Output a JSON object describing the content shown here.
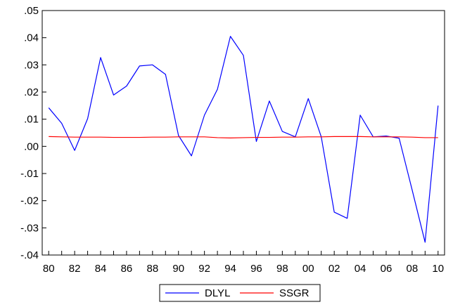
{
  "chart_data": {
    "type": "line",
    "title": "",
    "xlabel": "",
    "ylabel": "",
    "x": [
      1980,
      1981,
      1982,
      1983,
      1984,
      1985,
      1986,
      1987,
      1988,
      1989,
      1990,
      1991,
      1992,
      1993,
      1994,
      1995,
      1996,
      1997,
      1998,
      1999,
      2000,
      2001,
      2002,
      2003,
      2004,
      2005,
      2006,
      2007,
      2008,
      2009,
      2010
    ],
    "x_tick_values": [
      1980,
      1982,
      1984,
      1986,
      1988,
      1990,
      1992,
      1994,
      1996,
      1998,
      2000,
      2002,
      2004,
      2006,
      2008,
      2010
    ],
    "x_tick_labels": [
      "80",
      "82",
      "84",
      "86",
      "88",
      "90",
      "92",
      "94",
      "96",
      "98",
      "00",
      "02",
      "04",
      "06",
      "08",
      "10"
    ],
    "xlim": [
      1979.5,
      2010.5
    ],
    "y_tick_values": [
      -0.04,
      -0.03,
      -0.02,
      -0.01,
      0.0,
      0.01,
      0.02,
      0.03,
      0.04,
      0.05
    ],
    "y_tick_labels": [
      "-.04",
      "-.03",
      "-.02",
      "-.01",
      ".00",
      ".01",
      ".02",
      ".03",
      ".04",
      ".05"
    ],
    "ylim": [
      -0.04,
      0.05
    ],
    "grid": false,
    "legend": "bottom-center",
    "series": [
      {
        "name": "DLYL",
        "color": "#0000ff",
        "values": [
          0.0142,
          0.0085,
          -0.0015,
          0.0102,
          0.0327,
          0.0189,
          0.0222,
          0.0296,
          0.03,
          0.0265,
          0.004,
          -0.0035,
          0.0115,
          0.021,
          0.0405,
          0.0335,
          0.0018,
          0.0167,
          0.0055,
          0.0035,
          0.0176,
          0.0035,
          -0.0242,
          -0.0265,
          0.0115,
          0.0035,
          0.0038,
          0.003,
          -0.016,
          -0.0353,
          0.015
        ]
      },
      {
        "name": "SSGR",
        "color": "#ff0000",
        "values": [
          0.0036,
          0.0035,
          0.0034,
          0.0034,
          0.0034,
          0.0033,
          0.0033,
          0.0033,
          0.0034,
          0.0034,
          0.0035,
          0.0035,
          0.0035,
          0.0032,
          0.0031,
          0.0032,
          0.0033,
          0.0033,
          0.0034,
          0.0034,
          0.0035,
          0.0035,
          0.0036,
          0.0036,
          0.0036,
          0.0035,
          0.0035,
          0.0035,
          0.0034,
          0.0032,
          0.0032
        ]
      }
    ]
  }
}
